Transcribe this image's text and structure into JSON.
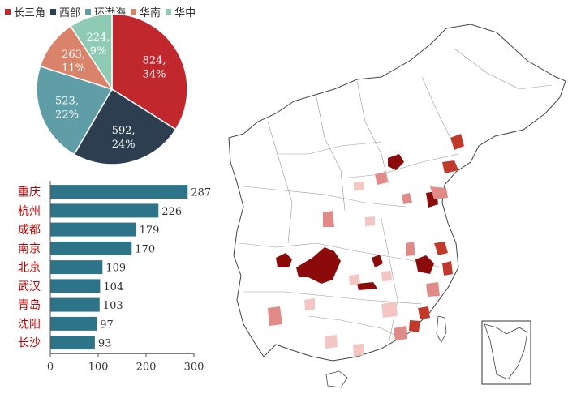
{
  "chart_data": [
    {
      "type": "pie",
      "legend_position": "top-left",
      "slices": [
        {
          "name": "长三角",
          "value": 824,
          "percent_label": "34%",
          "color": "#c0282d"
        },
        {
          "name": "西部",
          "value": 592,
          "percent_label": "24%",
          "color": "#2d3e50"
        },
        {
          "name": "环渤海",
          "value": 523,
          "percent_label": "22%",
          "color": "#5f9ea6"
        },
        {
          "name": "华南",
          "value": 263,
          "percent_label": "11%",
          "color": "#d9836a"
        },
        {
          "name": "华中",
          "value": 224,
          "percent_label": "9%",
          "color": "#8fcbb4"
        }
      ]
    },
    {
      "type": "bar",
      "orientation": "horizontal",
      "categories": [
        "重庆",
        "杭州",
        "成都",
        "南京",
        "北京",
        "武汉",
        "青岛",
        "沈阳",
        "长沙"
      ],
      "values": [
        287,
        226,
        179,
        170,
        109,
        104,
        103,
        97,
        93
      ],
      "xlim": [
        0,
        300
      ],
      "xticks": [
        0,
        100,
        200,
        300
      ],
      "bar_color": "#2e7489",
      "category_color": "#c00000",
      "grid": false
    },
    {
      "type": "choropleth",
      "region": "China (prefecture level)",
      "shades": [
        "#8b0a0a",
        "#c0392b",
        "#e08b88",
        "#f3c6c4",
        "#ffffff"
      ],
      "inset": "South China Sea islands"
    }
  ]
}
